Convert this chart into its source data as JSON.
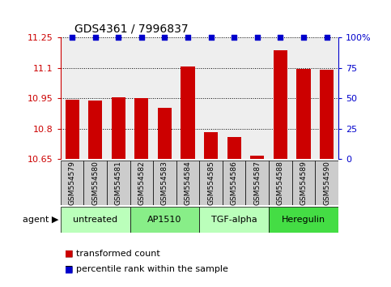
{
  "title": "GDS4361 / 7996837",
  "samples": [
    "GSM554579",
    "GSM554580",
    "GSM554581",
    "GSM554582",
    "GSM554583",
    "GSM554584",
    "GSM554585",
    "GSM554586",
    "GSM554587",
    "GSM554588",
    "GSM554589",
    "GSM554590"
  ],
  "bar_values": [
    10.943,
    10.94,
    10.955,
    10.95,
    10.905,
    11.105,
    10.785,
    10.76,
    10.668,
    11.185,
    11.093,
    11.09
  ],
  "percentile_values": [
    100,
    100,
    100,
    100,
    100,
    100,
    100,
    100,
    100,
    100,
    100,
    100
  ],
  "bar_color": "#cc0000",
  "dot_color": "#0000cc",
  "ylim_left": [
    10.65,
    11.25
  ],
  "ylim_right": [
    0,
    100
  ],
  "yticks_left": [
    10.65,
    10.8,
    10.95,
    11.1,
    11.25
  ],
  "ytick_labels_left": [
    "10.65",
    "10.8",
    "10.95",
    "11.1",
    "11.25"
  ],
  "yticks_right": [
    0,
    25,
    50,
    75,
    100
  ],
  "ytick_labels_right": [
    "0",
    "25",
    "50",
    "75",
    "100%"
  ],
  "groups": [
    {
      "label": "untreated",
      "start": 0,
      "end": 3,
      "color": "#bbffbb"
    },
    {
      "label": "AP1510",
      "start": 3,
      "end": 6,
      "color": "#88ee88"
    },
    {
      "label": "TGF-alpha",
      "start": 6,
      "end": 9,
      "color": "#bbffbb"
    },
    {
      "label": "Heregulin",
      "start": 9,
      "end": 12,
      "color": "#44dd44"
    }
  ],
  "agent_label": "agent",
  "legend_items": [
    {
      "label": "transformed count",
      "color": "#cc0000"
    },
    {
      "label": "percentile rank within the sample",
      "color": "#0000cc"
    }
  ],
  "background_color": "#ffffff",
  "plot_bg_color": "#eeeeee",
  "sample_box_color": "#cccccc",
  "bar_width": 0.6,
  "dot_size": 18,
  "title_fontsize": 10,
  "axis_fontsize": 8,
  "sample_fontsize": 6.5,
  "group_fontsize": 8,
  "legend_fontsize": 8
}
